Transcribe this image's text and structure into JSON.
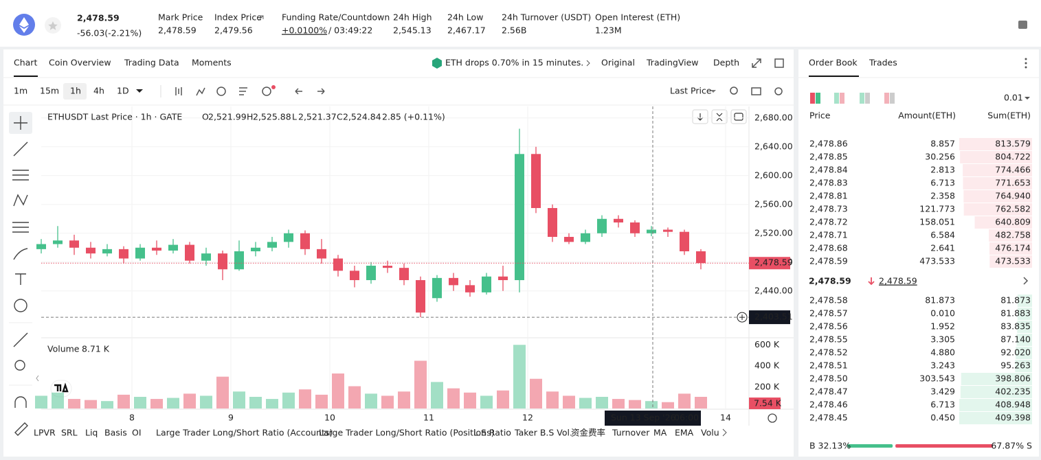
{
  "header": {
    "price": "2,478.59",
    "change": "-56.03(-2.21%)",
    "stats": [
      {
        "label": "Mark Price",
        "value": "2,478.59"
      },
      {
        "label": "Index Price",
        "value": "2,479.56"
      },
      {
        "label": "Funding Rate/Countdown",
        "value": "+0.0100%",
        "value2": "/ 03:49:22"
      },
      {
        "label": "24h High",
        "value": "2,545.13"
      },
      {
        "label": "24h Low",
        "value": "2,467.17"
      },
      {
        "label": "24h Turnover (USDT)",
        "value": "2.56B"
      },
      {
        "label": "Open Interest (ETH)",
        "value": "1.23M"
      }
    ]
  },
  "tabs": [
    "Chart",
    "Coin Overview",
    "Trading Data",
    "Moments"
  ],
  "news": "ETH drops 0.70% in 15 minutes.",
  "view_tabs": [
    "Original",
    "TradingView",
    "Depth"
  ],
  "intervals": [
    "1m",
    "15m",
    "1h",
    "4h",
    "1D"
  ],
  "price_type": "Last Price",
  "indicators": [
    "LPVR",
    "SRL",
    "Liq",
    "Basis",
    "OI",
    "Large Trader Long/Short Ratio (Accounts)",
    "Large Trader Long/Short Ratio (Positions)",
    "L.S Ratio",
    "Taker B.S Vol.",
    "资金费率",
    "Turnover",
    "MA",
    "EMA",
    "Volu"
  ],
  "chart_data": {
    "type": "candlestick",
    "legend_title": "ETHUSDT Last Price · 1h · GATE",
    "ohlc_legend": [
      {
        "key": "O",
        "value": "2,521.99"
      },
      {
        "key": "H",
        "value": "2,525.88"
      },
      {
        "key": "L",
        "value": "2,521.37"
      },
      {
        "key": "C",
        "value": "2,524.84"
      }
    ],
    "legend_change": "2.85 (+0.11%)",
    "up_color": "#45c08b",
    "down_color": "#e84f64",
    "x": [
      0,
      4,
      8,
      12,
      16,
      20,
      24,
      28,
      32,
      36,
      40,
      44,
      48,
      52,
      56,
      60,
      64,
      68,
      72,
      76,
      80,
      84,
      88,
      92,
      96,
      100,
      104,
      108,
      112,
      116,
      120,
      124,
      128,
      132,
      136,
      140,
      144,
      148,
      152,
      156,
      160
    ],
    "open": [
      2498,
      2505,
      2510,
      2500,
      2492,
      2498,
      2485,
      2500,
      2496,
      2504,
      2482,
      2492,
      2470,
      2495,
      2500,
      2508,
      2520,
      2498,
      2485,
      2468,
      2455,
      2475,
      2472,
      2455,
      2430,
      2458,
      2448,
      2438,
      2460,
      2455,
      2630,
      2555,
      2515,
      2508,
      2520,
      2540,
      2535,
      2520,
      2525,
      2522,
      2495
    ],
    "high": [
      2512,
      2530,
      2518,
      2508,
      2505,
      2502,
      2505,
      2510,
      2512,
      2508,
      2500,
      2496,
      2510,
      2508,
      2515,
      2525,
      2524,
      2512,
      2490,
      2475,
      2480,
      2482,
      2478,
      2460,
      2462,
      2465,
      2455,
      2465,
      2475,
      2665,
      2640,
      2560,
      2520,
      2525,
      2545,
      2545,
      2538,
      2530,
      2528,
      2525,
      2498
    ],
    "low": [
      2492,
      2500,
      2490,
      2485,
      2488,
      2478,
      2482,
      2490,
      2492,
      2478,
      2475,
      2455,
      2468,
      2488,
      2495,
      2500,
      2490,
      2478,
      2460,
      2445,
      2450,
      2465,
      2448,
      2403.51,
      2425,
      2440,
      2432,
      2435,
      2440,
      2438,
      2548,
      2508,
      2505,
      2505,
      2515,
      2528,
      2515,
      2516,
      2515,
      2490,
      2470
    ],
    "close": [
      2505,
      2510,
      2500,
      2492,
      2498,
      2485,
      2500,
      2496,
      2504,
      2482,
      2492,
      2470,
      2495,
      2500,
      2508,
      2520,
      2498,
      2485,
      2468,
      2455,
      2475,
      2472,
      2455,
      2410,
      2458,
      2448,
      2438,
      2460,
      2455,
      2630,
      2555,
      2515,
      2508,
      2520,
      2540,
      2535,
      2520,
      2525,
      2522,
      2495,
      2478.59
    ],
    "xlim": [
      0,
      172
    ],
    "xticks": [
      {
        "value": 22,
        "label": "8"
      },
      {
        "value": 46,
        "label": "9"
      },
      {
        "value": 70,
        "label": "10"
      },
      {
        "value": 94,
        "label": "11"
      },
      {
        "value": 118,
        "label": "12"
      },
      {
        "value": 166,
        "label": "14"
      }
    ],
    "ylim": [
      2375,
      2696
    ],
    "yticks": [
      {
        "value": 2440,
        "label": "2,440.00"
      },
      {
        "value": 2480,
        "label": "2,480.00"
      },
      {
        "value": 2520,
        "label": "2,520.00"
      },
      {
        "value": 2560,
        "label": "2,560.00"
      },
      {
        "value": 2600,
        "label": "2,600.00"
      },
      {
        "value": 2640,
        "label": "2,640.00"
      },
      {
        "value": 2680,
        "label": "2,680.00"
      }
    ],
    "last_price": 2478.59,
    "last_price_label": "2,478.59",
    "crosshair": {
      "price": 2403.51,
      "price_label": "2,403.51",
      "date": "Sun 13 Sep '26",
      "time": "06:00"
    },
    "volume": {
      "title": "Volume",
      "value_label": "8.71 K",
      "current_label": "7.54 K",
      "ylim": [
        0,
        660
      ],
      "yticks": [
        {
          "value": 200,
          "label": "200 K"
        },
        {
          "value": 400,
          "label": "400 K"
        },
        {
          "value": 600,
          "label": "600 K"
        }
      ],
      "values": [
        120,
        150,
        90,
        80,
        70,
        130,
        110,
        90,
        100,
        140,
        120,
        300,
        160,
        110,
        90,
        150,
        180,
        130,
        330,
        210,
        140,
        120,
        160,
        450,
        250,
        190,
        150,
        120,
        170,
        600,
        280,
        160,
        120,
        100,
        110,
        90,
        80,
        70,
        60,
        140,
        110
      ]
    }
  },
  "order_book": {
    "tabs": [
      "Order Book",
      "Trades"
    ],
    "precision": "0.01",
    "columns": [
      "Price",
      "Amount(ETH)",
      "Sum(ETH)"
    ],
    "asks": [
      [
        "2,478.86",
        "8.857",
        "813.579"
      ],
      [
        "2,478.85",
        "30.256",
        "804.722"
      ],
      [
        "2,478.84",
        "2.813",
        "774.466"
      ],
      [
        "2,478.83",
        "6.713",
        "771.653"
      ],
      [
        "2,478.81",
        "2.358",
        "764.940"
      ],
      [
        "2,478.73",
        "121.773",
        "762.582"
      ],
      [
        "2,478.72",
        "158.051",
        "640.809"
      ],
      [
        "2,478.71",
        "6.584",
        "482.758"
      ],
      [
        "2,478.68",
        "2.641",
        "476.174"
      ],
      [
        "2,478.59",
        "473.533",
        "473.533"
      ]
    ],
    "mid_price": "2,478.59",
    "mark_price": "2,478.59",
    "bids": [
      [
        "2,478.58",
        "81.873",
        "81.873"
      ],
      [
        "2,478.57",
        "0.010",
        "81.883"
      ],
      [
        "2,478.56",
        "1.952",
        "83.835"
      ],
      [
        "2,478.55",
        "3.305",
        "87.140"
      ],
      [
        "2,478.52",
        "4.880",
        "92.020"
      ],
      [
        "2,478.51",
        "3.243",
        "95.263"
      ],
      [
        "2,478.50",
        "303.543",
        "398.806"
      ],
      [
        "2,478.47",
        "3.429",
        "402.235"
      ],
      [
        "2,478.46",
        "6.713",
        "408.948"
      ],
      [
        "2,478.45",
        "0.450",
        "409.398"
      ]
    ],
    "buy_pct": 32.13,
    "buy_label": "B 32.13%",
    "sell_label": "67.87% S"
  }
}
